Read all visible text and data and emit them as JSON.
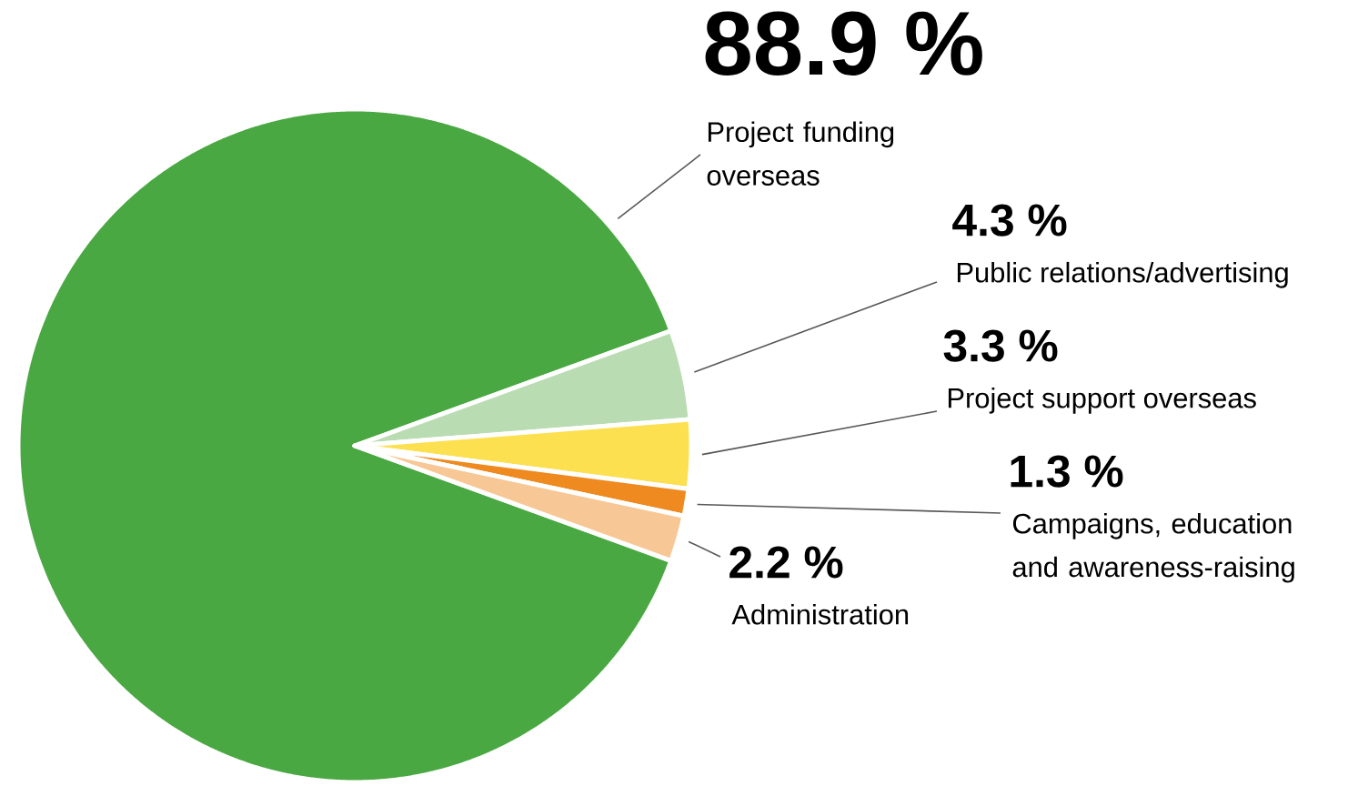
{
  "chart_data": {
    "type": "pie",
    "categories": [
      "Project funding overseas",
      "Public relations/advertising",
      "Project support overseas",
      "Campaigns, education and awareness-raising",
      "Administration"
    ],
    "values": [
      88.9,
      4.3,
      3.3,
      1.3,
      2.2
    ],
    "colors": [
      "#4aa843",
      "#b9dcb2",
      "#fde04f",
      "#ee8a1f",
      "#f7c896"
    ],
    "value_labels": [
      "88.9 %",
      "4.3 %",
      "3.3 %",
      "1.3 %",
      "2.2 %"
    ]
  }
}
